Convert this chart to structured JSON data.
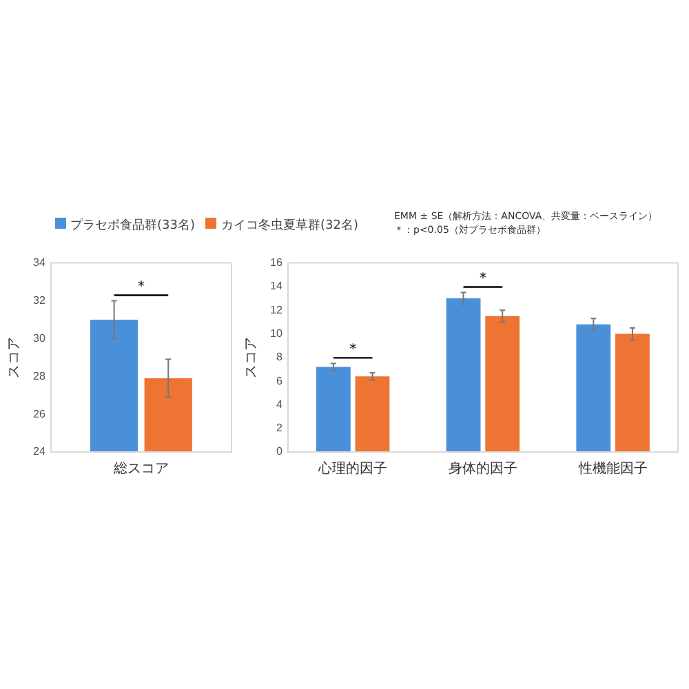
{
  "chart_data": [
    {
      "type": "bar",
      "ylabel": "スコア",
      "categories": [
        "総スコア"
      ],
      "series": [
        {
          "name": "プラセボ食品群(33名)",
          "color": "#4a90d9",
          "values": [
            31.0
          ],
          "errors": [
            1.0
          ]
        },
        {
          "name": "カイコ冬虫夏草群(32名)",
          "color": "#ed7432",
          "values": [
            27.9
          ],
          "errors": [
            1.0
          ]
        }
      ],
      "ylim": [
        24,
        34
      ],
      "yticks": [
        24,
        26,
        28,
        30,
        32,
        34
      ],
      "grid": false,
      "legend": "top",
      "annotations": [
        "*"
      ]
    },
    {
      "type": "bar",
      "ylabel": "スコア",
      "categories": [
        "心理的因子",
        "身体的因子",
        "性機能因子"
      ],
      "series": [
        {
          "color": "#4a90d9",
          "values": [
            7.2,
            13.0,
            10.8
          ],
          "errors": [
            0.3,
            0.5,
            0.5
          ]
        },
        {
          "color": "#ed7432",
          "values": [
            6.4,
            11.5,
            10.0
          ],
          "errors": [
            0.3,
            0.5,
            0.5
          ]
        }
      ],
      "ylim": [
        0,
        16
      ],
      "yticks": [
        0,
        2,
        4,
        6,
        8,
        10,
        12,
        14,
        16
      ],
      "grid": false,
      "annotations": [
        "EMM ± SE（解析方法：ANCOVA、共変量：ベースライン）",
        "＊：p<0.05（対プラセボ食品群）",
        "*",
        "*"
      ]
    }
  ]
}
